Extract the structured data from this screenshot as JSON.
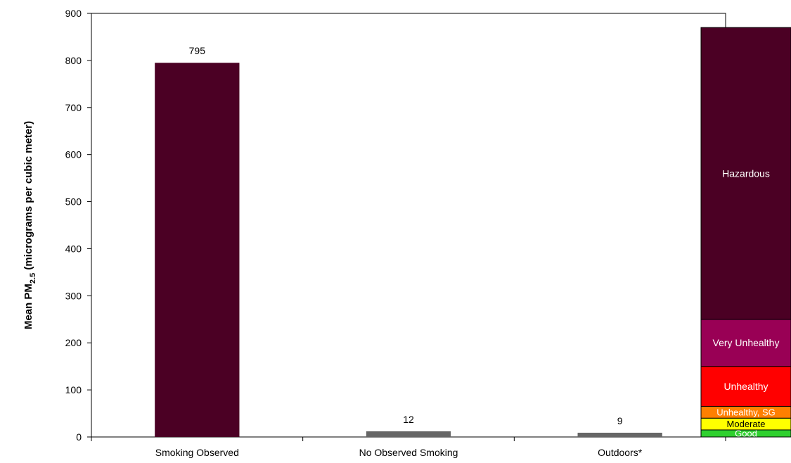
{
  "chart_data": {
    "type": "bar",
    "ylabel_main": "Mean PM",
    "ylabel_sub": "2.5",
    "ylabel_tail": " (micrograms per cubic meter)",
    "ylim": [
      0,
      900
    ],
    "yticks": [
      "0",
      "100",
      "200",
      "300",
      "400",
      "500",
      "600",
      "700",
      "800",
      "900"
    ],
    "grid": false,
    "legend": "none",
    "categories": [
      "Smoking Observed",
      "No Observed Smoking",
      "Outdoors*"
    ],
    "values": [
      795,
      12,
      9
    ],
    "data_labels": [
      "795",
      "12",
      "9"
    ],
    "bar_colors": [
      "#4b0024",
      "#666666",
      "#666666"
    ],
    "aqi_scale": [
      {
        "label": "Good",
        "from": 0,
        "to": 15,
        "color": "#2fd02f",
        "text_color": "#ffffff"
      },
      {
        "label": "Moderate",
        "from": 15,
        "to": 40,
        "color": "#ffff00",
        "text_color": "#000000"
      },
      {
        "label": "Unhealthy, SG",
        "from": 40,
        "to": 65,
        "color": "#ff7f00",
        "text_color": "#ffffff"
      },
      {
        "label": "Unhealthy",
        "from": 65,
        "to": 150,
        "color": "#ff0000",
        "text_color": "#ffffff"
      },
      {
        "label": "Very Unhealthy",
        "from": 150,
        "to": 250,
        "color": "#990055",
        "text_color": "#ffffff"
      },
      {
        "label": "Hazardous",
        "from": 250,
        "to": 870,
        "color": "#4b0024",
        "text_color": "#ffffff"
      }
    ]
  }
}
